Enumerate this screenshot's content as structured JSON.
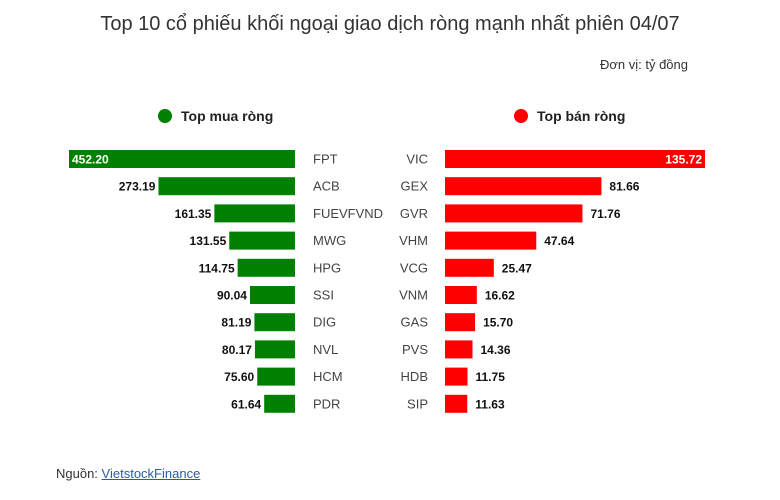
{
  "title": "Top 10 cổ phiếu khối ngoại giao dịch ròng mạnh nhất phiên 04/07",
  "unit": "Đơn vị: tỷ đồng",
  "source": {
    "prefix": "Nguồn: ",
    "link_text": "VietstockFinance"
  },
  "colors": {
    "buy": "#008000",
    "sell": "#ff0000"
  },
  "chart_data": [
    {
      "type": "bar",
      "orientation": "horizontal",
      "direction": "leftward",
      "legend": "Top mua ròng",
      "categories": [
        "FPT",
        "ACB",
        "FUEVFVND",
        "MWG",
        "HPG",
        "SSI",
        "DIG",
        "NVL",
        "HCM",
        "PDR"
      ],
      "values": [
        452.2,
        273.19,
        161.35,
        131.55,
        114.75,
        90.04,
        81.19,
        80.17,
        75.6,
        61.64
      ],
      "value_labels": [
        "452.20",
        "273.19",
        "161.35",
        "131.55",
        "114.75",
        "90.04",
        "81.19",
        "80.17",
        "75.60",
        "61.64"
      ],
      "color": "#008000"
    },
    {
      "type": "bar",
      "orientation": "horizontal",
      "direction": "rightward",
      "legend": "Top bán ròng",
      "categories": [
        "VIC",
        "GEX",
        "GVR",
        "VHM",
        "VCG",
        "VNM",
        "GAS",
        "PVS",
        "HDB",
        "SIP"
      ],
      "values": [
        135.72,
        81.66,
        71.76,
        47.64,
        25.47,
        16.62,
        15.7,
        14.36,
        11.75,
        11.63
      ],
      "value_labels": [
        "135.72",
        "81.66",
        "71.76",
        "47.64",
        "25.47",
        "16.62",
        "15.70",
        "14.36",
        "11.75",
        "11.63"
      ],
      "color": "#ff0000"
    }
  ]
}
